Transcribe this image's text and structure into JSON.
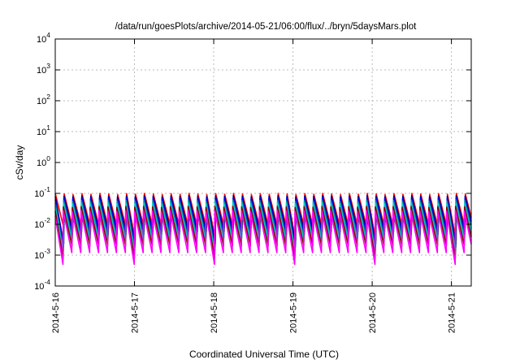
{
  "chart_data": {
    "type": "line",
    "title": "/data/run/goesPlots/archive/2014-05-21/06:00/flux/../bryn/5daysMars.plot",
    "xlabel": "Coordinated Universal Time (UTC)",
    "ylabel": "cSv/day",
    "x_tick_labels": [
      "2014-5-16",
      "2014-5-17",
      "2014-5-18",
      "2014-5-19",
      "2014-5-20",
      "2014-5-21"
    ],
    "y_ticks": [
      {
        "base": "10",
        "exp": "-4"
      },
      {
        "base": "10",
        "exp": "-3"
      },
      {
        "base": "10",
        "exp": "-2"
      },
      {
        "base": "10",
        "exp": "-1"
      },
      {
        "base": "10",
        "exp": "0"
      },
      {
        "base": "10",
        "exp": "1"
      },
      {
        "base": "10",
        "exp": "2"
      },
      {
        "base": "10",
        "exp": "3"
      },
      {
        "base": "10",
        "exp": "4"
      }
    ],
    "xlim": [
      "2014-05-16T00:00",
      "2014-05-21T06:00"
    ],
    "ylim": [
      0.0001,
      10000
    ],
    "yscale": "log",
    "grid": true,
    "period_hours": 2.7,
    "series": [
      {
        "color": "#ff0000",
        "peak": 0.1,
        "trough": 0.0075,
        "trough_deep": 0.003
      },
      {
        "color": "#000080",
        "peak": 0.085,
        "trough": 0.0058,
        "trough_deep": 0.0023
      },
      {
        "color": "#0000ff",
        "peak": 0.072,
        "trough": 0.0046,
        "trough_deep": 0.0018
      },
      {
        "color": "#008b8b",
        "peak": 0.06,
        "trough": 0.0036,
        "trough_deep": 0.0014
      },
      {
        "color": "#00cccc",
        "peak": 0.05,
        "trough": 0.0028,
        "trough_deep": 0.0011
      },
      {
        "color": "#8b0000",
        "peak": 0.038,
        "trough": 0.002,
        "trough_deep": 0.0008
      },
      {
        "color": "#ff00ff",
        "peak": 0.028,
        "trough": 0.0012,
        "trough_deep": 0.0005
      }
    ]
  }
}
